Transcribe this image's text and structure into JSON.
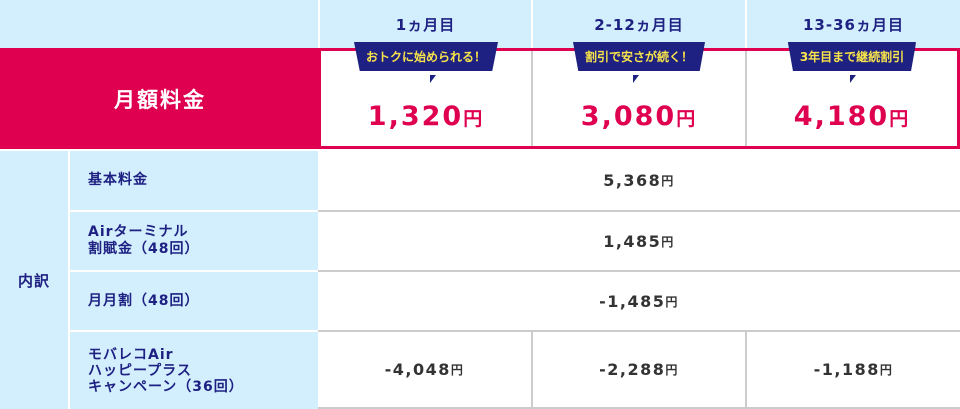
{
  "header": {
    "columns": [
      "1ヵ月目",
      "2-12ヵ月目",
      "13-36ヵ月目"
    ]
  },
  "monthly": {
    "label": "月額料金",
    "prices": [
      {
        "badge": "おトクに始められる！",
        "amount": "1,320",
        "unit": "円"
      },
      {
        "badge": "割引で安さが続く！",
        "amount": "3,080",
        "unit": "円"
      },
      {
        "badge": "3年目まで継続割引",
        "amount": "4,180",
        "unit": "円"
      }
    ]
  },
  "breakdown": {
    "label": "内訳",
    "rows": [
      {
        "label": "基本料金",
        "values": [
          "5,368"
        ]
      },
      {
        "label": "Airターミナル\n割賦金（48回）",
        "values": [
          "1,485"
        ]
      },
      {
        "label": "月月割（48回）",
        "values": [
          "-1,485"
        ]
      },
      {
        "label": "モバレコAir\nハッピープラス\nキャンペーン（36回）",
        "values": [
          "-4,048",
          "-2,288",
          "-1,188"
        ]
      }
    ],
    "unit": "円"
  },
  "colors": {
    "accent_pink": "#df0050",
    "navy": "#1e2182",
    "light_blue": "#d3effd",
    "badge_text": "#f7e34a"
  }
}
